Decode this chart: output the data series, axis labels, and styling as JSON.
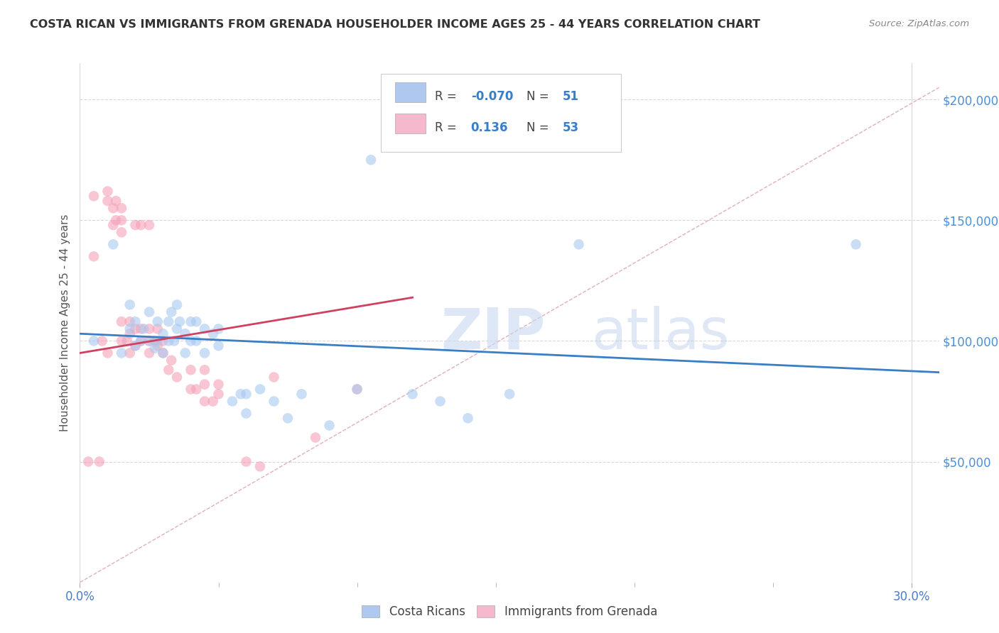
{
  "title": "COSTA RICAN VS IMMIGRANTS FROM GRENADA HOUSEHOLDER INCOME AGES 25 - 44 YEARS CORRELATION CHART",
  "source": "Source: ZipAtlas.com",
  "ylabel": "Householder Income Ages 25 - 44 years",
  "xlim": [
    0.0,
    0.31
  ],
  "ylim": [
    0,
    215000
  ],
  "ytick_labels": [
    "$50,000",
    "$100,000",
    "$150,000",
    "$200,000"
  ],
  "ytick_vals": [
    50000,
    100000,
    150000,
    200000
  ],
  "watermark_zip": "ZIP",
  "watermark_atlas": "atlas",
  "blue_color": "#a8c8f0",
  "pink_color": "#f5a0b8",
  "blue_line_color": "#3a7ec6",
  "pink_line_color": "#d04060",
  "diag_line_color": "#e0b0b8",
  "background_color": "#ffffff",
  "grid_color": "#d8d8d8",
  "title_color": "#333333",
  "source_color": "#888888",
  "legend_box_color": "#aec8f0",
  "legend_pink_color": "#f5b8cc",
  "blue_scatter": {
    "x": [
      0.005,
      0.012,
      0.015,
      0.018,
      0.018,
      0.02,
      0.02,
      0.022,
      0.023,
      0.025,
      0.025,
      0.027,
      0.028,
      0.028,
      0.03,
      0.03,
      0.032,
      0.032,
      0.033,
      0.034,
      0.035,
      0.035,
      0.036,
      0.038,
      0.038,
      0.04,
      0.04,
      0.042,
      0.042,
      0.045,
      0.045,
      0.048,
      0.05,
      0.05,
      0.055,
      0.058,
      0.06,
      0.06,
      0.065,
      0.07,
      0.075,
      0.08,
      0.09,
      0.1,
      0.105,
      0.12,
      0.13,
      0.14,
      0.155,
      0.18,
      0.28
    ],
    "y": [
      100000,
      140000,
      95000,
      105000,
      115000,
      98000,
      108000,
      100000,
      105000,
      100000,
      112000,
      97000,
      100000,
      108000,
      95000,
      103000,
      100000,
      108000,
      112000,
      100000,
      105000,
      115000,
      108000,
      95000,
      103000,
      100000,
      108000,
      100000,
      108000,
      95000,
      105000,
      103000,
      98000,
      105000,
      75000,
      78000,
      70000,
      78000,
      80000,
      75000,
      68000,
      78000,
      65000,
      80000,
      175000,
      78000,
      75000,
      68000,
      78000,
      140000,
      140000
    ]
  },
  "pink_scatter": {
    "x": [
      0.003,
      0.005,
      0.005,
      0.007,
      0.008,
      0.01,
      0.01,
      0.01,
      0.012,
      0.012,
      0.013,
      0.013,
      0.015,
      0.015,
      0.015,
      0.015,
      0.015,
      0.017,
      0.018,
      0.018,
      0.018,
      0.02,
      0.02,
      0.02,
      0.022,
      0.022,
      0.022,
      0.025,
      0.025,
      0.025,
      0.025,
      0.027,
      0.028,
      0.028,
      0.03,
      0.03,
      0.032,
      0.033,
      0.035,
      0.04,
      0.04,
      0.042,
      0.045,
      0.045,
      0.045,
      0.048,
      0.05,
      0.05,
      0.06,
      0.065,
      0.07,
      0.085,
      0.1
    ],
    "y": [
      50000,
      135000,
      160000,
      50000,
      100000,
      95000,
      158000,
      162000,
      148000,
      155000,
      150000,
      158000,
      145000,
      150000,
      155000,
      100000,
      108000,
      100000,
      95000,
      103000,
      108000,
      98000,
      105000,
      148000,
      148000,
      100000,
      105000,
      95000,
      100000,
      105000,
      148000,
      100000,
      98000,
      105000,
      95000,
      100000,
      88000,
      92000,
      85000,
      80000,
      88000,
      80000,
      75000,
      82000,
      88000,
      75000,
      78000,
      82000,
      50000,
      48000,
      85000,
      60000,
      80000
    ]
  },
  "blue_line_x": [
    0.0,
    0.31
  ],
  "blue_line_y": [
    103000,
    87000
  ],
  "pink_line_x": [
    0.0,
    0.12
  ],
  "pink_line_y": [
    95000,
    118000
  ],
  "diag_line_x": [
    0.0,
    0.31
  ],
  "diag_line_y": [
    0,
    205000
  ]
}
